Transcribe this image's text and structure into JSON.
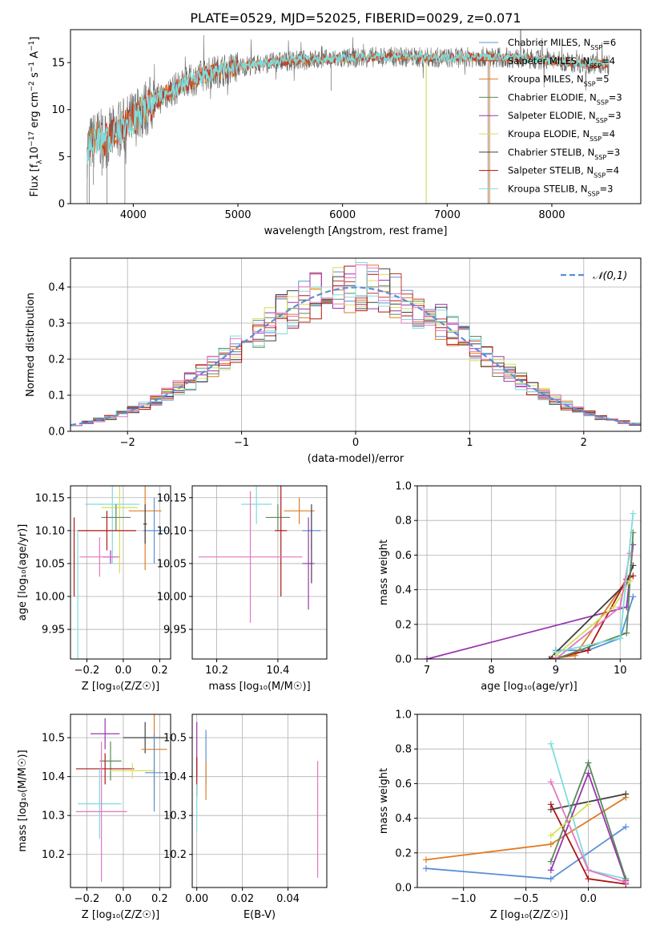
{
  "colors": {
    "Chabrier MILES": "#5b8fd6",
    "Salpeter MILES": "#c0392b",
    "Kroupa MILES": "#e07b24",
    "Chabrier ELODIE": "#5a8a5a",
    "Salpeter ELODIE": "#9b35b0",
    "Kroupa ELODIE": "#d4e157",
    "Chabrier STELIB": "#404040",
    "Salpeter STELIB": "#b01515",
    "Kroupa STELIB": "#7fdcdc",
    "pink": "#e377c2",
    "normal": "#5b8fd6"
  },
  "chart_data": [
    {
      "id": "spectrum",
      "type": "line",
      "title": "PLATE=0529, MJD=52025, FIBERID=0029, z=0.071",
      "xlabel": "wavelength [Angstrom, rest frame]",
      "ylabel_parts": [
        "Flux [f",
        "λ",
        "10",
        "−17",
        " erg cm",
        "−2",
        " s",
        "−1",
        " A",
        "−1",
        "]"
      ],
      "xlim": [
        3400,
        8850
      ],
      "ylim": [
        0,
        18.5
      ],
      "xticks": [
        4000,
        5000,
        6000,
        7000,
        8000
      ],
      "yticks": [
        0,
        5,
        10,
        15
      ],
      "legend": [
        {
          "name": "Chabrier MILES",
          "nssp": "6"
        },
        {
          "name": "Salpeter MILES",
          "nssp": "4"
        },
        {
          "name": "Kroupa MILES",
          "nssp": "5"
        },
        {
          "name": "Chabrier ELODIE",
          "nssp": "3"
        },
        {
          "name": "Salpeter ELODIE",
          "nssp": "3"
        },
        {
          "name": "Kroupa ELODIE",
          "nssp": "4"
        },
        {
          "name": "Chabrier STELIB",
          "nssp": "3"
        },
        {
          "name": "Salpeter STELIB",
          "nssp": "4"
        },
        {
          "name": "Kroupa STELIB",
          "nssp": "3"
        }
      ],
      "continuum": [
        [
          3560,
          6.0
        ],
        [
          3650,
          7.0
        ],
        [
          3750,
          6.8
        ],
        [
          3850,
          7.8
        ],
        [
          3950,
          8.5
        ],
        [
          4100,
          10.0
        ],
        [
          4300,
          11.6
        ],
        [
          4500,
          12.8
        ],
        [
          4700,
          13.8
        ],
        [
          4900,
          14.3
        ],
        [
          5100,
          14.7
        ],
        [
          5400,
          15.1
        ],
        [
          5700,
          15.3
        ],
        [
          6000,
          15.4
        ],
        [
          6300,
          15.6
        ],
        [
          6600,
          15.6
        ],
        [
          7000,
          15.5
        ],
        [
          7400,
          15.6
        ],
        [
          7800,
          15.4
        ],
        [
          8200,
          15.0
        ],
        [
          8550,
          14.8
        ]
      ]
    },
    {
      "id": "residuals",
      "type": "histogram",
      "xlabel": "(data-model)/error",
      "ylabel": "Normed distribution",
      "xlim": [
        -2.5,
        2.5
      ],
      "ylim": [
        0,
        0.48
      ],
      "xticks": [
        -2,
        -1,
        0,
        1,
        2
      ],
      "yticks": [
        0.0,
        0.1,
        0.2,
        0.3,
        0.4
      ],
      "legend_label": "𝒩(0,1)"
    },
    {
      "id": "age-Z",
      "type": "scatter",
      "xlabel": "Z [log₁₀(Z/Z☉)]",
      "ylabel": "age  [log₁₀(age/yr)]",
      "xlim": [
        -0.29,
        0.26
      ],
      "ylim": [
        9.905,
        10.168
      ],
      "xticks": [
        -0.2,
        0.0,
        0.2
      ],
      "xticklabels": [
        "−0.2",
        "0.0",
        "0.2"
      ],
      "yticks": [
        9.95,
        10.0,
        10.05,
        10.1,
        10.15
      ],
      "yticklabels": [
        "9.95",
        "10.00",
        "10.05",
        "10.10",
        "10.15"
      ],
      "points": [
        {
          "series": "Chabrier MILES",
          "x": 0.17,
          "y": 10.1,
          "xerr": 0.06,
          "yerr": 0.05
        },
        {
          "series": "Kroupa MILES",
          "x": 0.12,
          "y": 10.13,
          "xerr": 0.09,
          "yerr": 0.09
        },
        {
          "series": "Chabrier STELIB",
          "x": 0.12,
          "y": 10.11,
          "xerr": 0.01,
          "yerr": 0.03
        },
        {
          "series": "Kroupa STELIB",
          "x": -0.06,
          "y": 10.14,
          "xerr": 0.15,
          "yerr": 0.09
        },
        {
          "series": "Kroupa ELODIE",
          "x": -0.02,
          "y": 10.135,
          "xerr": 0.1,
          "yerr": 0.1
        },
        {
          "series": "Chabrier ELODIE",
          "x": -0.04,
          "y": 10.12,
          "xerr": 0.08,
          "yerr": 0.02
        },
        {
          "series": "Salpeter STELIB",
          "x": -0.09,
          "y": 10.1,
          "xerr": 0.16,
          "yerr": 0.03
        },
        {
          "series": "Salpeter ELODIE",
          "x": -0.07,
          "y": 10.06,
          "xerr": 0.04,
          "yerr": 0.01
        },
        {
          "series": "pink",
          "x": -0.13,
          "y": 10.06,
          "xerr": 0.11,
          "yerr": 0.03
        },
        {
          "series": "Salpeter STELIB",
          "x": -0.27,
          "y": 10.06,
          "xerr": 0.0,
          "yerr": 0.06
        },
        {
          "series": "Kroupa STELIB",
          "x": -0.25,
          "y": 10.0,
          "xerr": 0.0,
          "yerr": 0.1
        }
      ]
    },
    {
      "id": "age-mass",
      "type": "scatter",
      "xlabel": "mass [log₁₀(M/M☉)]",
      "ylabel": "",
      "xlim": [
        10.12,
        10.56
      ],
      "ylim": [
        9.905,
        10.168
      ],
      "xticks": [
        10.2,
        10.4
      ],
      "xticklabels": [
        "10.2",
        "10.4"
      ],
      "yticks": [
        9.95,
        10.0,
        10.05,
        10.1,
        10.15
      ],
      "yticklabels": [
        "9.95",
        "10.00",
        "10.05",
        "10.10",
        "10.15"
      ],
      "points": [
        {
          "series": "Kroupa STELIB",
          "x": 10.33,
          "y": 10.14,
          "xerr": 0.05,
          "yerr": 0.03
        },
        {
          "series": "Kroupa MILES",
          "x": 10.47,
          "y": 10.13,
          "xerr": 0.05,
          "yerr": 0.02
        },
        {
          "series": "Chabrier ELODIE",
          "x": 10.4,
          "y": 10.12,
          "xerr": 0.04,
          "yerr": 0.02
        },
        {
          "series": "Chabrier MILES",
          "x": 10.51,
          "y": 10.1,
          "xerr": 0.03,
          "yerr": 0.03
        },
        {
          "series": "Salpeter STELIB",
          "x": 10.41,
          "y": 10.1,
          "xerr": 0.02,
          "yerr": 0.1
        },
        {
          "series": "Salpeter ELODIE",
          "x": 10.5,
          "y": 10.05,
          "xerr": 0.02,
          "yerr": 0.07
        },
        {
          "series": "Chabrier STELIB",
          "x": 10.51,
          "y": 10.08,
          "xerr": 0.0,
          "yerr": 0.06
        },
        {
          "series": "pink",
          "x": 10.31,
          "y": 10.06,
          "xerr": 0.17,
          "yerr": 0.1
        }
      ]
    },
    {
      "id": "weight-age",
      "type": "line",
      "xlabel": "age  [log₁₀(age/yr)]",
      "ylabel": "mass weight",
      "xlim": [
        6.85,
        10.32
      ],
      "ylim": [
        0,
        1.0
      ],
      "xticks": [
        7,
        8,
        9,
        10
      ],
      "xticklabels": [
        "7",
        "8",
        "9",
        "10"
      ],
      "yticks": [
        0.0,
        0.2,
        0.4,
        0.6,
        0.8,
        1.0
      ],
      "yticklabels": [
        "0.0",
        "0.2",
        "0.4",
        "0.6",
        "0.8",
        "1.0"
      ],
      "series": [
        {
          "name": "Salpeter ELODIE",
          "x": [
            7.0,
            10.1,
            10.2
          ],
          "y": [
            0.0,
            0.3,
            0.66
          ]
        },
        {
          "name": "Chabrier MILES",
          "x": [
            9.0,
            9.5,
            10.0,
            10.2
          ],
          "y": [
            0.05,
            0.05,
            0.12,
            0.36
          ]
        },
        {
          "name": "Kroupa MILES",
          "x": [
            8.9,
            9.3,
            10.1,
            10.15
          ],
          "y": [
            0.0,
            0.02,
            0.46,
            0.48
          ]
        },
        {
          "name": "Chabrier STELIB",
          "x": [
            8.9,
            10.1,
            10.2
          ],
          "y": [
            0.0,
            0.44,
            0.54
          ]
        },
        {
          "name": "Salpeter STELIB",
          "x": [
            8.95,
            9.5,
            10.1,
            10.2
          ],
          "y": [
            0.0,
            0.05,
            0.46,
            0.48
          ]
        },
        {
          "name": "Chabrier ELODIE",
          "x": [
            9.0,
            10.1,
            10.2
          ],
          "y": [
            0.0,
            0.15,
            0.73
          ]
        },
        {
          "name": "Kroupa ELODIE",
          "x": [
            9.0,
            9.9,
            10.15
          ],
          "y": [
            0.02,
            0.3,
            0.45
          ]
        },
        {
          "name": "pink",
          "x": [
            9.0,
            10.0,
            10.15
          ],
          "y": [
            0.0,
            0.3,
            0.61
          ]
        },
        {
          "name": "Kroupa STELIB",
          "x": [
            9.0,
            10.0,
            10.2
          ],
          "y": [
            0.04,
            0.12,
            0.84
          ]
        }
      ]
    },
    {
      "id": "mass-Z",
      "type": "scatter",
      "xlabel": "Z [log₁₀(Z/Z☉)]",
      "ylabel": "mass [log₁₀(M/M☉)]",
      "xlim": [
        -0.29,
        0.26
      ],
      "ylim": [
        10.115,
        10.56
      ],
      "xticks": [
        -0.2,
        0.0,
        0.2
      ],
      "xticklabels": [
        "−0.2",
        "0.0",
        "0.2"
      ],
      "yticks": [
        10.2,
        10.3,
        10.4,
        10.5
      ],
      "yticklabels": [
        "10.2",
        "10.3",
        "10.4",
        "10.5"
      ],
      "points": [
        {
          "series": "Salpeter ELODIE",
          "x": -0.1,
          "y": 10.51,
          "xerr": 0.08,
          "yerr": 0.04
        },
        {
          "series": "Chabrier STELIB",
          "x": 0.12,
          "y": 10.5,
          "xerr": 0.12,
          "yerr": 0.04
        },
        {
          "series": "Kroupa MILES",
          "x": 0.17,
          "y": 10.47,
          "xerr": 0.07,
          "yerr": 0.13
        },
        {
          "series": "Chabrier ELODIE",
          "x": -0.07,
          "y": 10.44,
          "xerr": 0.06,
          "yerr": 0.05
        },
        {
          "series": "Salpeter STELIB",
          "x": -0.1,
          "y": 10.42,
          "xerr": 0.16,
          "yerr": 0.04
        },
        {
          "series": "Kroupa ELODIE",
          "x": 0.05,
          "y": 10.415,
          "xerr": 0.12,
          "yerr": 0.02
        },
        {
          "series": "Chabrier MILES",
          "x": 0.17,
          "y": 10.41,
          "xerr": 0.05,
          "yerr": 0.1
        },
        {
          "series": "Kroupa STELIB",
          "x": -0.13,
          "y": 10.33,
          "xerr": 0.12,
          "yerr": 0.09
        },
        {
          "series": "pink",
          "x": -0.12,
          "y": 10.31,
          "xerr": 0.14,
          "yerr": 0.18
        }
      ]
    },
    {
      "id": "mass-EBV",
      "type": "scatter",
      "xlabel": "E(B-V)",
      "ylabel": "",
      "xlim": [
        -0.002,
        0.057
      ],
      "ylim": [
        10.115,
        10.56
      ],
      "xticks": [
        0.0,
        0.02,
        0.04
      ],
      "xticklabels": [
        "0.00",
        "0.02",
        "0.04"
      ],
      "yticks": [
        10.2,
        10.3,
        10.4,
        10.5
      ],
      "yticklabels": [
        "10.2",
        "10.3",
        "10.4",
        "10.5"
      ],
      "points": [
        {
          "series": "Salpeter ELODIE",
          "x": 0.0,
          "y": 10.47,
          "xerr": 0.0,
          "yerr": 0.07
        },
        {
          "series": "Chabrier MILES",
          "x": 0.004,
          "y": 10.45,
          "xerr": 0.0,
          "yerr": 0.07
        },
        {
          "series": "Kroupa MILES",
          "x": 0.004,
          "y": 10.39,
          "xerr": 0.0,
          "yerr": 0.05
        },
        {
          "series": "Salpeter STELIB",
          "x": 0.0,
          "y": 10.4,
          "xerr": 0.0,
          "yerr": 0.05
        },
        {
          "series": "Kroupa STELIB",
          "x": 0.0,
          "y": 10.32,
          "xerr": 0.0,
          "yerr": 0.06
        },
        {
          "series": "pink",
          "x": 0.053,
          "y": 10.29,
          "xerr": 0.0,
          "yerr": 0.15
        }
      ]
    },
    {
      "id": "weight-Z",
      "type": "line",
      "xlabel": "Z [log₁₀(Z/Z☉)]",
      "ylabel": "mass weight",
      "xlim": [
        -1.37,
        0.42
      ],
      "ylim": [
        0,
        1.0
      ],
      "xticks": [
        -1.0,
        -0.5,
        0.0
      ],
      "xticklabels": [
        "−1.0",
        "−0.5",
        "0.0"
      ],
      "yticks": [
        0.0,
        0.2,
        0.4,
        0.6,
        0.8,
        1.0
      ],
      "yticklabels": [
        "0.0",
        "0.2",
        "0.4",
        "0.6",
        "0.8",
        "1.0"
      ],
      "series": [
        {
          "name": "Chabrier MILES",
          "x": [
            -1.3,
            -0.3,
            0.3
          ],
          "y": [
            0.11,
            0.05,
            0.35
          ]
        },
        {
          "name": "Kroupa MILES",
          "x": [
            -1.3,
            -0.3,
            0.3
          ],
          "y": [
            0.16,
            0.25,
            0.52
          ]
        },
        {
          "name": "Chabrier STELIB",
          "x": [
            -0.3,
            0.3
          ],
          "y": [
            0.45,
            0.54
          ]
        },
        {
          "name": "Salpeter STELIB",
          "x": [
            -0.3,
            0.0,
            0.3
          ],
          "y": [
            0.48,
            0.05,
            0.02
          ]
        },
        {
          "name": "Kroupa STELIB",
          "x": [
            -0.3,
            0.0,
            0.3
          ],
          "y": [
            0.83,
            0.1,
            0.05
          ]
        },
        {
          "name": "Salpeter ELODIE",
          "x": [
            -0.3,
            0.0,
            0.3
          ],
          "y": [
            0.1,
            0.66,
            0.04
          ]
        },
        {
          "name": "Chabrier ELODIE",
          "x": [
            -0.3,
            0.0,
            0.3
          ],
          "y": [
            0.15,
            0.72,
            0.05
          ]
        },
        {
          "name": "Kroupa ELODIE",
          "x": [
            -0.3,
            0.0
          ],
          "y": [
            0.3,
            0.48
          ]
        },
        {
          "name": "pink",
          "x": [
            -0.3,
            0.0,
            0.3
          ],
          "y": [
            0.61,
            0.1,
            0.03
          ]
        }
      ]
    }
  ]
}
